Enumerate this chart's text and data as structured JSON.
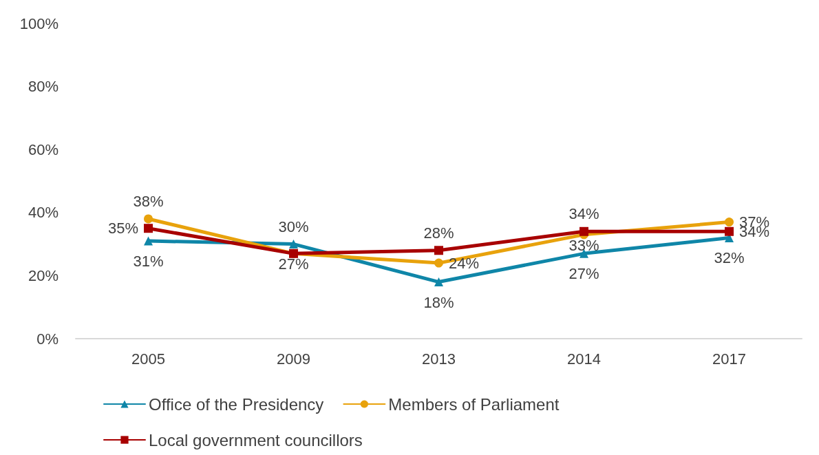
{
  "chart_data": {
    "type": "line",
    "categories": [
      "2005",
      "2009",
      "2013",
      "2014",
      "2017"
    ],
    "series": [
      {
        "name": "Office of the Presidency",
        "color": "#0f86a8",
        "marker": "triangle",
        "values": [
          31,
          30,
          18,
          27,
          32
        ],
        "value_labels": [
          "31%",
          "30%",
          "18%",
          "27%",
          "32%"
        ]
      },
      {
        "name": "Members of Parliament",
        "color": "#e8a20c",
        "marker": "circle",
        "values": [
          38,
          27,
          24,
          33,
          37
        ],
        "value_labels": [
          "38%",
          "27%",
          "24%",
          "33%",
          "37%"
        ]
      },
      {
        "name": "Local government councillors",
        "color": "#a80000",
        "marker": "square",
        "values": [
          35,
          27,
          28,
          34,
          34
        ],
        "value_labels": [
          "35%",
          null,
          "28%",
          "34%",
          "34%"
        ]
      }
    ],
    "ylim": [
      0,
      100
    ],
    "yticks": [
      {
        "value": 0,
        "label": "0%"
      },
      {
        "value": 20,
        "label": "20%"
      },
      {
        "value": 40,
        "label": "40%"
      },
      {
        "value": 60,
        "label": "60%"
      },
      {
        "value": 80,
        "label": "80%"
      },
      {
        "value": 100,
        "label": "100%"
      }
    ],
    "grid": false,
    "legend": "bottom",
    "line_style": "solid"
  }
}
